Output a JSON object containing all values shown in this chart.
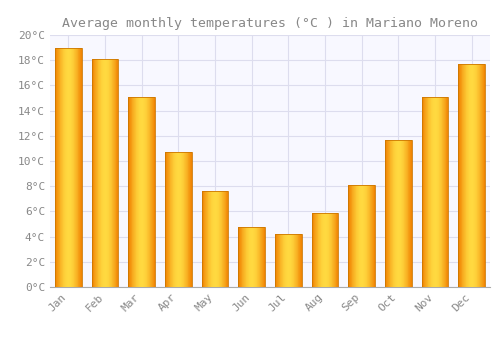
{
  "title": "Average monthly temperatures (°C ) in Mariano Moreno",
  "months": [
    "Jan",
    "Feb",
    "Mar",
    "Apr",
    "May",
    "Jun",
    "Jul",
    "Aug",
    "Sep",
    "Oct",
    "Nov",
    "Dec"
  ],
  "temperatures": [
    19.0,
    18.1,
    15.1,
    10.7,
    7.6,
    4.8,
    4.2,
    5.9,
    8.1,
    11.7,
    15.1,
    17.7
  ],
  "bar_color_center": "#FFD040",
  "bar_color_edge": "#F08000",
  "background_color": "#FFFFFF",
  "plot_bg_color": "#F8F8FF",
  "grid_color": "#DDDDEE",
  "text_color": "#888888",
  "ylim": [
    0,
    20
  ],
  "yticks": [
    0,
    2,
    4,
    6,
    8,
    10,
    12,
    14,
    16,
    18,
    20
  ],
  "title_fontsize": 9.5,
  "tick_fontsize": 8,
  "font_family": "monospace"
}
